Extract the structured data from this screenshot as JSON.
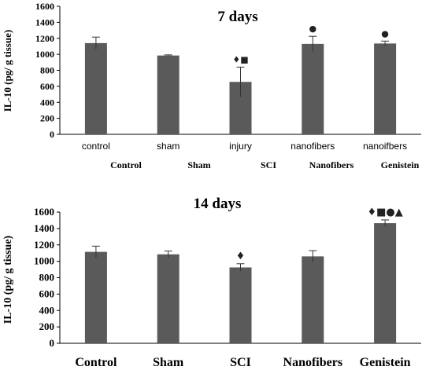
{
  "chart_data": [
    {
      "type": "bar",
      "title": "7 days",
      "ylabel": "IL-10 (pg/ g tissue)",
      "ylim": [
        0,
        1600
      ],
      "yticks": [
        0,
        200,
        400,
        600,
        800,
        1000,
        1200,
        1400,
        1600
      ],
      "categories": [
        "control",
        "sham",
        "injury",
        "nanofibers",
        "nanoifbers"
      ],
      "group_labels": [
        "Control",
        "Sham",
        "SCI",
        "Nanofibers",
        "Genistein"
      ],
      "values": [
        1140,
        985,
        655,
        1130,
        1135
      ],
      "errors": [
        75,
        8,
        185,
        95,
        30
      ],
      "annotations": [
        "",
        "",
        "♦■",
        "●",
        "●"
      ],
      "bar_color": "#5a5a5a",
      "grid": false
    },
    {
      "type": "bar",
      "title": "14 days",
      "ylabel": "IL-10 (pg/ g tissue)",
      "ylim": [
        0,
        1600
      ],
      "yticks": [
        0,
        200,
        400,
        600,
        800,
        1000,
        1200,
        1400,
        1600
      ],
      "categories": [
        "Control",
        "Sham",
        "SCI",
        "Nanofibers",
        "Genistein"
      ],
      "values": [
        1115,
        1085,
        925,
        1060,
        1465
      ],
      "errors": [
        70,
        40,
        45,
        70,
        40
      ],
      "annotations": [
        "",
        "",
        "♦",
        "",
        "♦■●▲"
      ],
      "bar_color": "#5a5a5a",
      "grid": false
    }
  ]
}
